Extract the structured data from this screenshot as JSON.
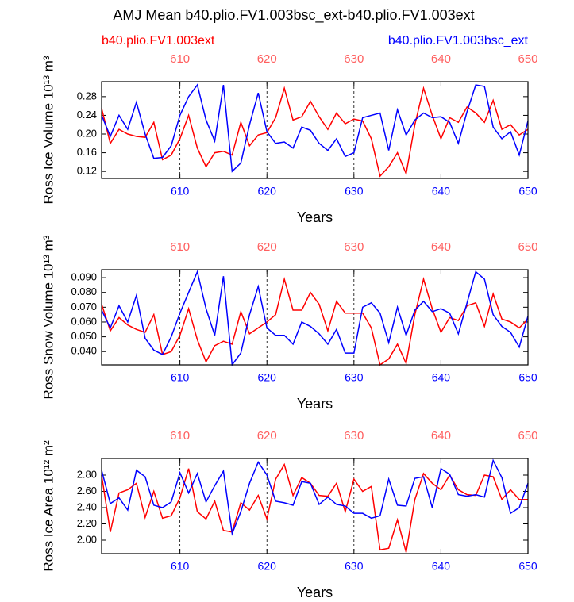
{
  "chart_data": [
    {
      "type": "line",
      "title": "AMJ Mean b40.plio.FV1.003bsc_ext-b40.plio.FV1.003ext",
      "ylabel": "Ross Ice Volume 10¹³ m³",
      "xlabel": "Years",
      "x": [
        601,
        602,
        603,
        604,
        605,
        606,
        607,
        608,
        609,
        610,
        611,
        612,
        613,
        614,
        615,
        616,
        617,
        618,
        619,
        620,
        621,
        622,
        623,
        624,
        625,
        626,
        627,
        628,
        629,
        630,
        631,
        632,
        633,
        634,
        635,
        636,
        637,
        638,
        639,
        640,
        641,
        642,
        643,
        644,
        645,
        646,
        647,
        648,
        649,
        650
      ],
      "xlim": [
        601,
        650
      ],
      "xticks": [
        610,
        620,
        630,
        640,
        650
      ],
      "ylim": [
        0.105,
        0.312
      ],
      "yticks": [
        0.12,
        0.16,
        {
          "value": 0.2,
          "label": "0.20"
        },
        0.24,
        0.28
      ],
      "grid": true,
      "series": [
        {
          "name": "b40.plio.FV1.003ext",
          "color": "#ff0000",
          "values": [
            0.255,
            0.18,
            0.21,
            0.2,
            0.195,
            0.193,
            0.225,
            0.145,
            0.155,
            0.19,
            0.24,
            0.17,
            0.13,
            0.16,
            0.163,
            0.155,
            0.225,
            0.175,
            0.198,
            0.203,
            0.235,
            0.298,
            0.23,
            0.237,
            0.27,
            0.237,
            0.21,
            0.245,
            0.222,
            0.232,
            0.228,
            0.19,
            0.11,
            0.13,
            0.16,
            0.115,
            0.22,
            0.298,
            0.24,
            0.19,
            0.235,
            0.225,
            0.258,
            0.245,
            0.225,
            0.272,
            0.21,
            0.22,
            0.198,
            0.21
          ]
        },
        {
          "name": "b40.plio.FV1.003bsc_ext",
          "color": "#0000ff",
          "values": [
            0.24,
            0.195,
            0.24,
            0.21,
            0.268,
            0.2,
            0.148,
            0.15,
            0.175,
            0.24,
            0.28,
            0.305,
            0.23,
            0.185,
            0.305,
            0.12,
            0.138,
            0.22,
            0.288,
            0.205,
            0.18,
            0.183,
            0.17,
            0.215,
            0.208,
            0.18,
            0.165,
            0.19,
            0.152,
            0.16,
            0.235,
            0.24,
            0.245,
            0.165,
            0.252,
            0.198,
            0.23,
            0.245,
            0.235,
            0.237,
            0.225,
            0.18,
            0.248,
            0.305,
            0.302,
            0.215,
            0.19,
            0.205,
            0.155,
            0.228
          ]
        }
      ]
    },
    {
      "type": "line",
      "ylabel": "Ross Snow Volume 10¹³ m³",
      "xlabel": "Years",
      "x": [
        601,
        602,
        603,
        604,
        605,
        606,
        607,
        608,
        609,
        610,
        611,
        612,
        613,
        614,
        615,
        616,
        617,
        618,
        619,
        620,
        621,
        622,
        623,
        624,
        625,
        626,
        627,
        628,
        629,
        630,
        631,
        632,
        633,
        634,
        635,
        636,
        637,
        638,
        639,
        640,
        641,
        642,
        643,
        644,
        645,
        646,
        647,
        648,
        649,
        650
      ],
      "xlim": [
        601,
        650
      ],
      "xticks": [
        610,
        620,
        630,
        640,
        650
      ],
      "ylim": [
        0.031,
        0.0954
      ],
      "yticks": [
        {
          "value": 0.04,
          "label": "0.040"
        },
        {
          "value": 0.05,
          "label": "0.050"
        },
        {
          "value": 0.06,
          "label": "0.060"
        },
        {
          "value": 0.07,
          "label": "0.070"
        },
        {
          "value": 0.08,
          "label": "0.080"
        },
        {
          "value": 0.09,
          "label": "0.090"
        }
      ],
      "grid": true,
      "series": [
        {
          "color": "#ff0000",
          "values": [
            0.072,
            0.054,
            0.063,
            0.058,
            0.055,
            0.053,
            0.065,
            0.038,
            0.04,
            0.051,
            0.069,
            0.048,
            0.033,
            0.044,
            0.047,
            0.045,
            0.067,
            0.052,
            0.056,
            0.06,
            0.065,
            0.089,
            0.068,
            0.068,
            0.08,
            0.072,
            0.054,
            0.074,
            0.066,
            0.066,
            0.066,
            0.056,
            0.031,
            0.035,
            0.045,
            0.032,
            0.065,
            0.089,
            0.069,
            0.053,
            0.063,
            0.061,
            0.071,
            0.073,
            0.057,
            0.079,
            0.062,
            0.06,
            0.056,
            0.062
          ]
        },
        {
          "color": "#0000ff",
          "values": [
            0.068,
            0.056,
            0.071,
            0.06,
            0.078,
            0.049,
            0.041,
            0.038,
            0.05,
            0.066,
            0.08,
            0.094,
            0.069,
            0.051,
            0.091,
            0.031,
            0.039,
            0.065,
            0.084,
            0.056,
            0.051,
            0.051,
            0.045,
            0.06,
            0.057,
            0.052,
            0.045,
            0.055,
            0.039,
            0.039,
            0.07,
            0.073,
            0.066,
            0.046,
            0.07,
            0.051,
            0.068,
            0.074,
            0.067,
            0.069,
            0.066,
            0.052,
            0.073,
            0.094,
            0.089,
            0.065,
            0.057,
            0.053,
            0.043,
            0.064
          ]
        }
      ]
    },
    {
      "type": "line",
      "ylabel": "Ross Ice Area 10¹² m²",
      "xlabel": "Years",
      "x": [
        601,
        602,
        603,
        604,
        605,
        606,
        607,
        608,
        609,
        610,
        611,
        612,
        613,
        614,
        615,
        616,
        617,
        618,
        619,
        620,
        621,
        622,
        623,
        624,
        625,
        626,
        627,
        628,
        629,
        630,
        631,
        632,
        633,
        634,
        635,
        636,
        637,
        638,
        639,
        640,
        641,
        642,
        643,
        644,
        645,
        646,
        647,
        648,
        649,
        650
      ],
      "xlim": [
        601,
        650
      ],
      "xticks": [
        610,
        620,
        630,
        640,
        650
      ],
      "ylim": [
        1.834,
        3.005
      ],
      "yticks": [
        {
          "value": 2,
          "label": "2.00"
        },
        {
          "value": 2.2,
          "label": "2.20"
        },
        {
          "value": 2.4,
          "label": "2.40"
        },
        {
          "value": 2.6,
          "label": "2.60"
        },
        {
          "value": 2.8,
          "label": "2.80"
        }
      ],
      "grid": true,
      "series": [
        {
          "color": "#ff0000",
          "values": [
            2.8,
            2.1,
            2.58,
            2.62,
            2.7,
            2.28,
            2.6,
            2.27,
            2.3,
            2.52,
            2.88,
            2.35,
            2.26,
            2.48,
            2.12,
            2.1,
            2.46,
            2.37,
            2.55,
            2.26,
            2.75,
            2.93,
            2.55,
            2.77,
            2.7,
            2.55,
            2.54,
            2.7,
            2.35,
            2.75,
            2.6,
            2.66,
            1.88,
            1.9,
            2.25,
            1.85,
            2.5,
            2.82,
            2.7,
            2.62,
            2.8,
            2.62,
            2.56,
            2.55,
            2.8,
            2.78,
            2.5,
            2.62,
            2.5,
            2.5
          ]
        },
        {
          "color": "#0000ff",
          "values": [
            2.86,
            2.45,
            2.52,
            2.37,
            2.86,
            2.78,
            2.43,
            2.4,
            2.47,
            2.83,
            2.58,
            2.82,
            2.47,
            2.67,
            2.85,
            2.08,
            2.35,
            2.7,
            2.96,
            2.8,
            2.48,
            2.46,
            2.43,
            2.72,
            2.7,
            2.44,
            2.53,
            2.44,
            2.42,
            2.33,
            2.33,
            2.27,
            2.3,
            2.75,
            2.43,
            2.42,
            2.76,
            2.78,
            2.4,
            2.88,
            2.81,
            2.56,
            2.54,
            2.56,
            2.53,
            2.98,
            2.77,
            2.33,
            2.4,
            2.7
          ]
        }
      ]
    }
  ]
}
